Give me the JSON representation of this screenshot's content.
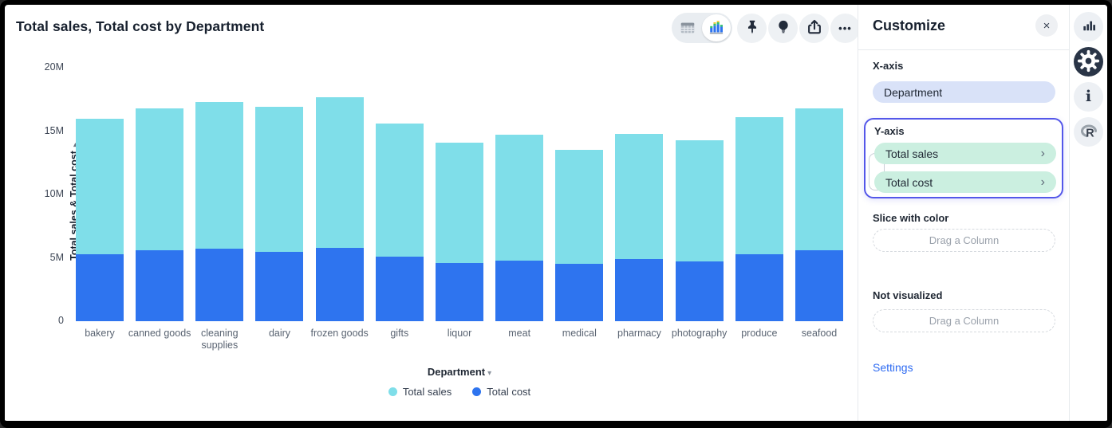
{
  "header": {
    "title": "Total sales, Total cost by Department"
  },
  "toolbar": {
    "view_toggle": {
      "selected": "chart"
    },
    "buttons": [
      "pin",
      "lightbulb",
      "share",
      "more"
    ]
  },
  "glyphs": {
    "close": "×",
    "chevron": "›",
    "down_caret": "▾",
    "right_caret": "▸",
    "ellipsis": "•••"
  },
  "chart_data": {
    "type": "bar",
    "stacked": true,
    "title": "Total sales, Total cost by Department",
    "categories": [
      "bakery",
      "canned goods",
      "cleaning supplies",
      "dairy",
      "frozen goods",
      "gifts",
      "liquor",
      "meat",
      "medical",
      "pharmacy",
      "photography",
      "produce",
      "seafood"
    ],
    "series": [
      {
        "name": "Total cost",
        "color": "#2e74ef",
        "values": [
          5.3,
          5.6,
          5.7,
          5.5,
          5.8,
          5.1,
          4.6,
          4.8,
          4.5,
          4.9,
          4.7,
          5.3,
          5.6
        ]
      },
      {
        "name": "Total sales",
        "color": "#7fdee9",
        "values": [
          10.7,
          11.2,
          11.6,
          11.4,
          11.9,
          10.5,
          9.5,
          9.9,
          9.0,
          9.9,
          9.6,
          10.8,
          11.2
        ]
      }
    ],
    "unit": "M",
    "xlabel": "Department",
    "ylabel": "Total sales & Total cost",
    "ylim": [
      0,
      20
    ],
    "yticks": [
      0,
      5,
      10,
      15,
      20
    ],
    "ytick_labels": [
      "0",
      "5M",
      "10M",
      "15M",
      "20M"
    ],
    "grid": false,
    "legend_position": "bottom",
    "legend": [
      {
        "label": "Total sales",
        "color": "#7fdee9"
      },
      {
        "label": "Total cost",
        "color": "#2e74ef"
      }
    ]
  },
  "panel": {
    "title": "Customize",
    "x_axis": {
      "label": "X-axis",
      "pill": "Department"
    },
    "y_axis": {
      "label": "Y-axis",
      "pills": [
        {
          "label": "Total sales"
        },
        {
          "label": "Total cost"
        }
      ]
    },
    "slice": {
      "label": "Slice with color",
      "dropzone": "Drag a Column"
    },
    "not_visualized": {
      "label": "Not visualized",
      "dropzone": "Drag a Column"
    },
    "settings_link": "Settings"
  },
  "sidebar": {
    "icons": [
      "chart-view",
      "settings-gear",
      "info",
      "r-logo"
    ],
    "active": "settings-gear"
  },
  "colors": {
    "sales_cyan": "#7fdee9",
    "cost_blue": "#2e74ef",
    "mint_pill": "#cbefe0",
    "lavender_pill": "#d9e2f8",
    "active_border_purple": "#5457e9",
    "link_blue": "#2e6bf2",
    "icon_dark": "#2a3547"
  }
}
